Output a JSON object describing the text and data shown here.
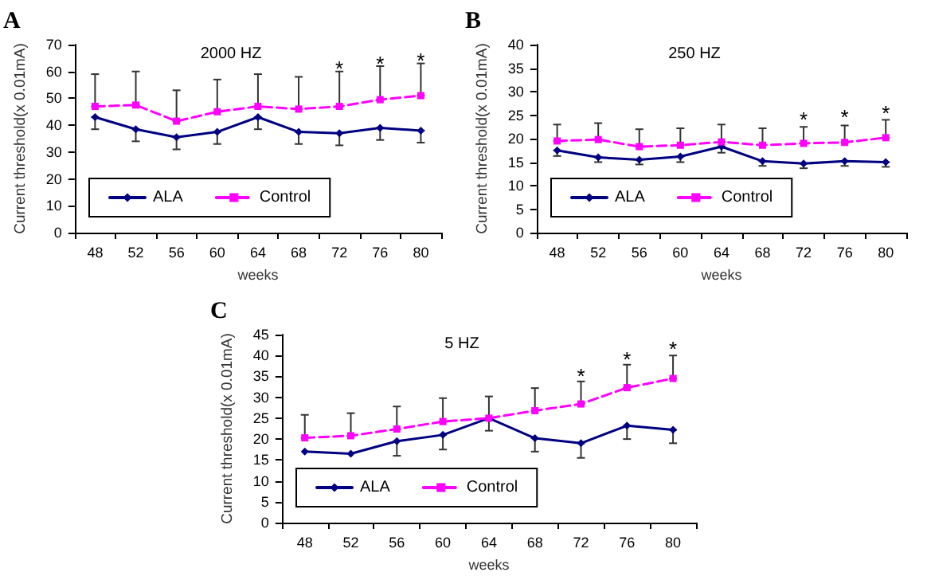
{
  "chart_data": [
    {
      "type": "line",
      "title": "2000 HZ",
      "xlabel": "weeks",
      "ylabel": "Current threshold(x 0.01mA)",
      "annotations": [
        "A",
        {
          "text": "*",
          "x": "72",
          "y": 61
        },
        {
          "text": "*",
          "x": "76",
          "y": 63
        },
        {
          "text": "*",
          "x": "80",
          "y": 64
        }
      ],
      "categories": [
        "48",
        "52",
        "56",
        "60",
        "64",
        "68",
        "72",
        "76",
        "80"
      ],
      "series": [
        {
          "name": "ALA",
          "color": "#000080",
          "marker": "diamond",
          "line_style": "solid",
          "values": [
            43,
            38.5,
            35.5,
            37.5,
            43,
            37.5,
            37,
            39,
            38
          ],
          "errors": [
            [
              38.5,
              43
            ],
            [
              34,
              38.5
            ],
            [
              31,
              35.5
            ],
            [
              33,
              37.5
            ],
            [
              38.5,
              43
            ],
            [
              33,
              37.5
            ],
            [
              32.5,
              37
            ],
            [
              34.5,
              39
            ],
            [
              33.5,
              38
            ]
          ]
        },
        {
          "name": "Control",
          "color": "#ff00ff",
          "marker": "square",
          "line_style": "dashed",
          "values": [
            47,
            47.5,
            41.5,
            45,
            47,
            46,
            47,
            49.5,
            51
          ],
          "errors": [
            [
              47,
              59
            ],
            [
              47.5,
              60
            ],
            [
              41.5,
              53
            ],
            [
              45,
              57
            ],
            [
              47,
              59
            ],
            [
              46,
              58
            ],
            [
              47,
              60
            ],
            [
              49.5,
              62
            ],
            [
              51,
              63
            ]
          ]
        }
      ],
      "ylim": [
        0,
        70
      ],
      "yticks": [
        0,
        10,
        20,
        30,
        40,
        50,
        60,
        70
      ],
      "grid": false,
      "legend": "bottom left"
    },
    {
      "type": "line",
      "title": "250 HZ",
      "xlabel": "weeks",
      "ylabel": "Current threshold(x 0.01mA)",
      "annotations": [
        "B",
        {
          "text": "*",
          "x": "72",
          "y": 24
        },
        {
          "text": "*",
          "x": "76",
          "y": 24.5
        },
        {
          "text": "*",
          "x": "80",
          "y": 25.5
        }
      ],
      "categories": [
        "48",
        "52",
        "56",
        "60",
        "64",
        "68",
        "72",
        "76",
        "80"
      ],
      "series": [
        {
          "name": "ALA",
          "color": "#000080",
          "marker": "diamond",
          "line_style": "solid",
          "values": [
            17.5,
            16,
            15.5,
            16.2,
            18.3,
            15.2,
            14.7,
            15.2,
            15
          ],
          "errors": [
            [
              16.3,
              17.5
            ],
            [
              15,
              16
            ],
            [
              14.5,
              15.5
            ],
            [
              15,
              16.2
            ],
            [
              17,
              18.3
            ],
            [
              14.2,
              15.2
            ],
            [
              13.7,
              14.7
            ],
            [
              14.2,
              15.2
            ],
            [
              14,
              15
            ]
          ]
        },
        {
          "name": "Control",
          "color": "#ff00ff",
          "marker": "square",
          "line_style": "dashed",
          "values": [
            19.5,
            19.8,
            18.3,
            18.6,
            19.3,
            18.6,
            19,
            19.2,
            20.2
          ],
          "errors": [
            [
              19.5,
              23
            ],
            [
              19.8,
              23.3
            ],
            [
              18.3,
              22
            ],
            [
              18.6,
              22.2
            ],
            [
              19.3,
              23
            ],
            [
              18.6,
              22.2
            ],
            [
              19,
              22.5
            ],
            [
              19.2,
              22.8
            ],
            [
              20.2,
              24
            ]
          ]
        }
      ],
      "ylim": [
        0,
        40
      ],
      "yticks": [
        0,
        5,
        10,
        15,
        20,
        25,
        30,
        35,
        40
      ],
      "grid": false,
      "legend": "bottom left"
    },
    {
      "type": "line",
      "title": "5 HZ",
      "xlabel": "weeks",
      "ylabel": "Current threshold(x 0.01mA)",
      "annotations": [
        "C",
        {
          "text": "*",
          "x": "72",
          "y": 35
        },
        {
          "text": "*",
          "x": "76",
          "y": 39
        },
        {
          "text": "*",
          "x": "80",
          "y": 41.5
        }
      ],
      "categories": [
        "48",
        "52",
        "56",
        "60",
        "64",
        "68",
        "72",
        "76",
        "80"
      ],
      "series": [
        {
          "name": "ALA",
          "color": "#000080",
          "marker": "diamond",
          "line_style": "solid",
          "values": [
            17,
            16.5,
            19.5,
            21,
            25,
            20.2,
            19,
            23.2,
            22.2
          ],
          "errors": [
            null,
            null,
            [
              16,
              19.5
            ],
            [
              17.5,
              21
            ],
            [
              22,
              25
            ],
            [
              17,
              20.2
            ],
            [
              15.5,
              19
            ],
            [
              20,
              23.2
            ],
            [
              19,
              22.2
            ]
          ]
        },
        {
          "name": "Control",
          "color": "#ff00ff",
          "marker": "square",
          "line_style": "dashed",
          "values": [
            20.3,
            20.8,
            22.4,
            24.2,
            25,
            26.8,
            28.4,
            32.3,
            34.5
          ],
          "errors": [
            [
              20.3,
              25.8
            ],
            [
              20.8,
              26.2
            ],
            [
              22.4,
              27.8
            ],
            [
              24.2,
              29.8
            ],
            [
              25,
              30.2
            ],
            [
              26.8,
              32.2
            ],
            [
              28.4,
              33.8
            ],
            [
              32.3,
              37.8
            ],
            [
              34.5,
              40
            ]
          ]
        }
      ],
      "ylim": [
        0,
        45
      ],
      "yticks": [
        0,
        5,
        10,
        15,
        20,
        25,
        30,
        35,
        40,
        45
      ],
      "grid": false,
      "legend": "bottom left"
    }
  ]
}
